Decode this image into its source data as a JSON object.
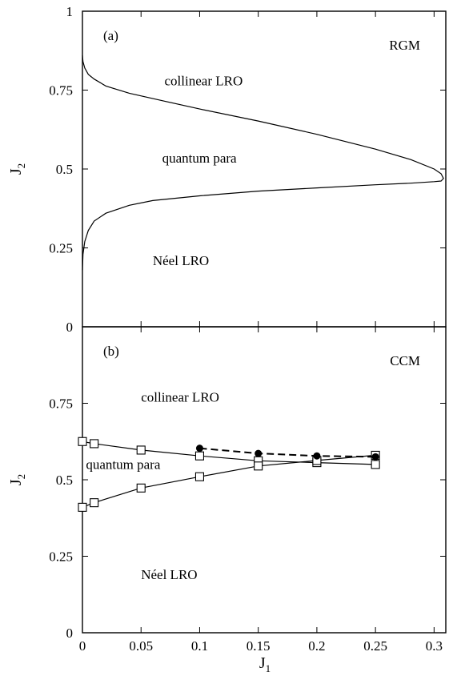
{
  "chart_data": [
    {
      "type": "line",
      "panel_label": "(a)",
      "method_label": "RGM",
      "ylabel_main": "J",
      "ylabel_sub": "2",
      "xlim": [
        0,
        0.31
      ],
      "ylim": [
        0,
        1
      ],
      "yticks": [
        0,
        0.25,
        0.5,
        0.75,
        1
      ],
      "ytick_labels": [
        "0",
        "0.25",
        "0.5",
        "0.75",
        "1"
      ],
      "region_labels": [
        {
          "text": "collinear LRO",
          "x": 0.07,
          "y": 0.765
        },
        {
          "text": "quantum para",
          "x": 0.068,
          "y": 0.52
        },
        {
          "text": "Néel  LRO",
          "x": 0.06,
          "y": 0.195
        }
      ],
      "series": [
        {
          "style": "solid",
          "marker": "none",
          "x": [
            0,
            0.0005,
            0.002,
            0.005,
            0.01,
            0.02,
            0.04,
            0.07,
            0.1,
            0.15,
            0.2,
            0.25,
            0.28,
            0.3,
            0.306,
            0.308,
            0.306,
            0.3,
            0.28,
            0.25,
            0.2,
            0.15,
            0.1,
            0.06,
            0.04,
            0.02,
            0.01,
            0.005,
            0.002,
            0.0005,
            0
          ],
          "y": [
            0.86,
            0.84,
            0.82,
            0.8,
            0.785,
            0.763,
            0.74,
            0.715,
            0.69,
            0.652,
            0.61,
            0.563,
            0.53,
            0.5,
            0.485,
            0.47,
            0.462,
            0.46,
            0.455,
            0.45,
            0.44,
            0.43,
            0.415,
            0.4,
            0.385,
            0.36,
            0.335,
            0.305,
            0.27,
            0.23,
            0.18
          ]
        }
      ]
    },
    {
      "type": "line",
      "panel_label": "(b)",
      "method_label": "CCM",
      "ylabel_main": "J",
      "ylabel_sub": "2",
      "xlabel_main": "J",
      "xlabel_sub": "1",
      "xlim": [
        0,
        0.31
      ],
      "ylim": [
        0,
        1
      ],
      "xticks": [
        0,
        0.05,
        0.1,
        0.15,
        0.2,
        0.25,
        0.3
      ],
      "xtick_labels": [
        "0",
        "0.05",
        "0.1",
        "0.15",
        "0.2",
        "0.25",
        "0.3"
      ],
      "yticks": [
        0,
        0.25,
        0.5,
        0.75
      ],
      "ytick_labels": [
        "0",
        "0.25",
        "0.5",
        "0.75"
      ],
      "region_labels": [
        {
          "text": "collinear LRO",
          "x": 0.05,
          "y": 0.755
        },
        {
          "text": "quantum para",
          "x": 0.003,
          "y": 0.535
        },
        {
          "text": "Néel  LRO",
          "x": 0.05,
          "y": 0.175
        }
      ],
      "series": [
        {
          "style": "solid",
          "marker": "open-square",
          "x": [
            0,
            0.01,
            0.05,
            0.1,
            0.15,
            0.2,
            0.25
          ],
          "y": [
            0.625,
            0.618,
            0.597,
            0.578,
            0.562,
            0.556,
            0.55
          ]
        },
        {
          "style": "solid",
          "marker": "open-square",
          "x": [
            0,
            0.01,
            0.05,
            0.1,
            0.15,
            0.2,
            0.25
          ],
          "y": [
            0.41,
            0.425,
            0.473,
            0.51,
            0.545,
            0.563,
            0.58
          ]
        },
        {
          "style": "dashed",
          "marker": "filled-circle",
          "x": [
            0.1,
            0.15,
            0.2,
            0.25
          ],
          "y": [
            0.603,
            0.586,
            0.578,
            0.575
          ]
        }
      ]
    }
  ]
}
